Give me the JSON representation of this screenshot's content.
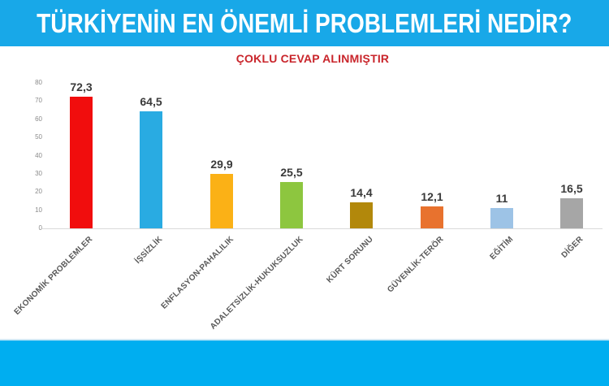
{
  "header": {
    "title": "TÜRKİYENİN EN ÖNEMLİ PROBLEMLERİ NEDİR?"
  },
  "colors": {
    "band_top": "#18a8e8",
    "band_bottom": "#00aef0",
    "subtitle": "#c9252b",
    "value_label": "#3a3a3a",
    "axis_label": "#8a8a8a",
    "category_label": "#595959",
    "baseline": "#d9d9d9",
    "title_text": "#ffffff"
  },
  "chart_data": {
    "type": "bar",
    "title": "TÜRKİYENİN EN ÖNEMLİ PROBLEMLERİ NEDİR?",
    "subtitle": "ÇOKLU CEVAP ALINMIŞTIR",
    "categories": [
      "EKONOMİK PROBLEMLER",
      "İŞSİZLİK",
      "ENFLASYON-PAHALILIK",
      "ADALETSİZLİK-HUKUKSUZLUK",
      "KÜRT SORUNU",
      "GÜVENLİK-TERÖR",
      "EĞİTİM",
      "DİĞER"
    ],
    "values": [
      72.3,
      64.5,
      29.9,
      25.5,
      14.4,
      12.1,
      11,
      16.5
    ],
    "value_labels": [
      "72,3",
      "64,5",
      "29,9",
      "25,5",
      "14,4",
      "12,1",
      "11",
      "16,5"
    ],
    "bar_colors": [
      "#f10d0d",
      "#29abe2",
      "#fbb116",
      "#8dc63f",
      "#b2880b",
      "#e8722e",
      "#9dc3e6",
      "#a6a6a6"
    ],
    "xlabel": "",
    "ylabel": "",
    "ylim": [
      0,
      80
    ],
    "yticks": [
      0,
      10,
      20,
      30,
      40,
      50,
      60,
      70,
      80
    ],
    "grid": false,
    "legend": "none"
  }
}
